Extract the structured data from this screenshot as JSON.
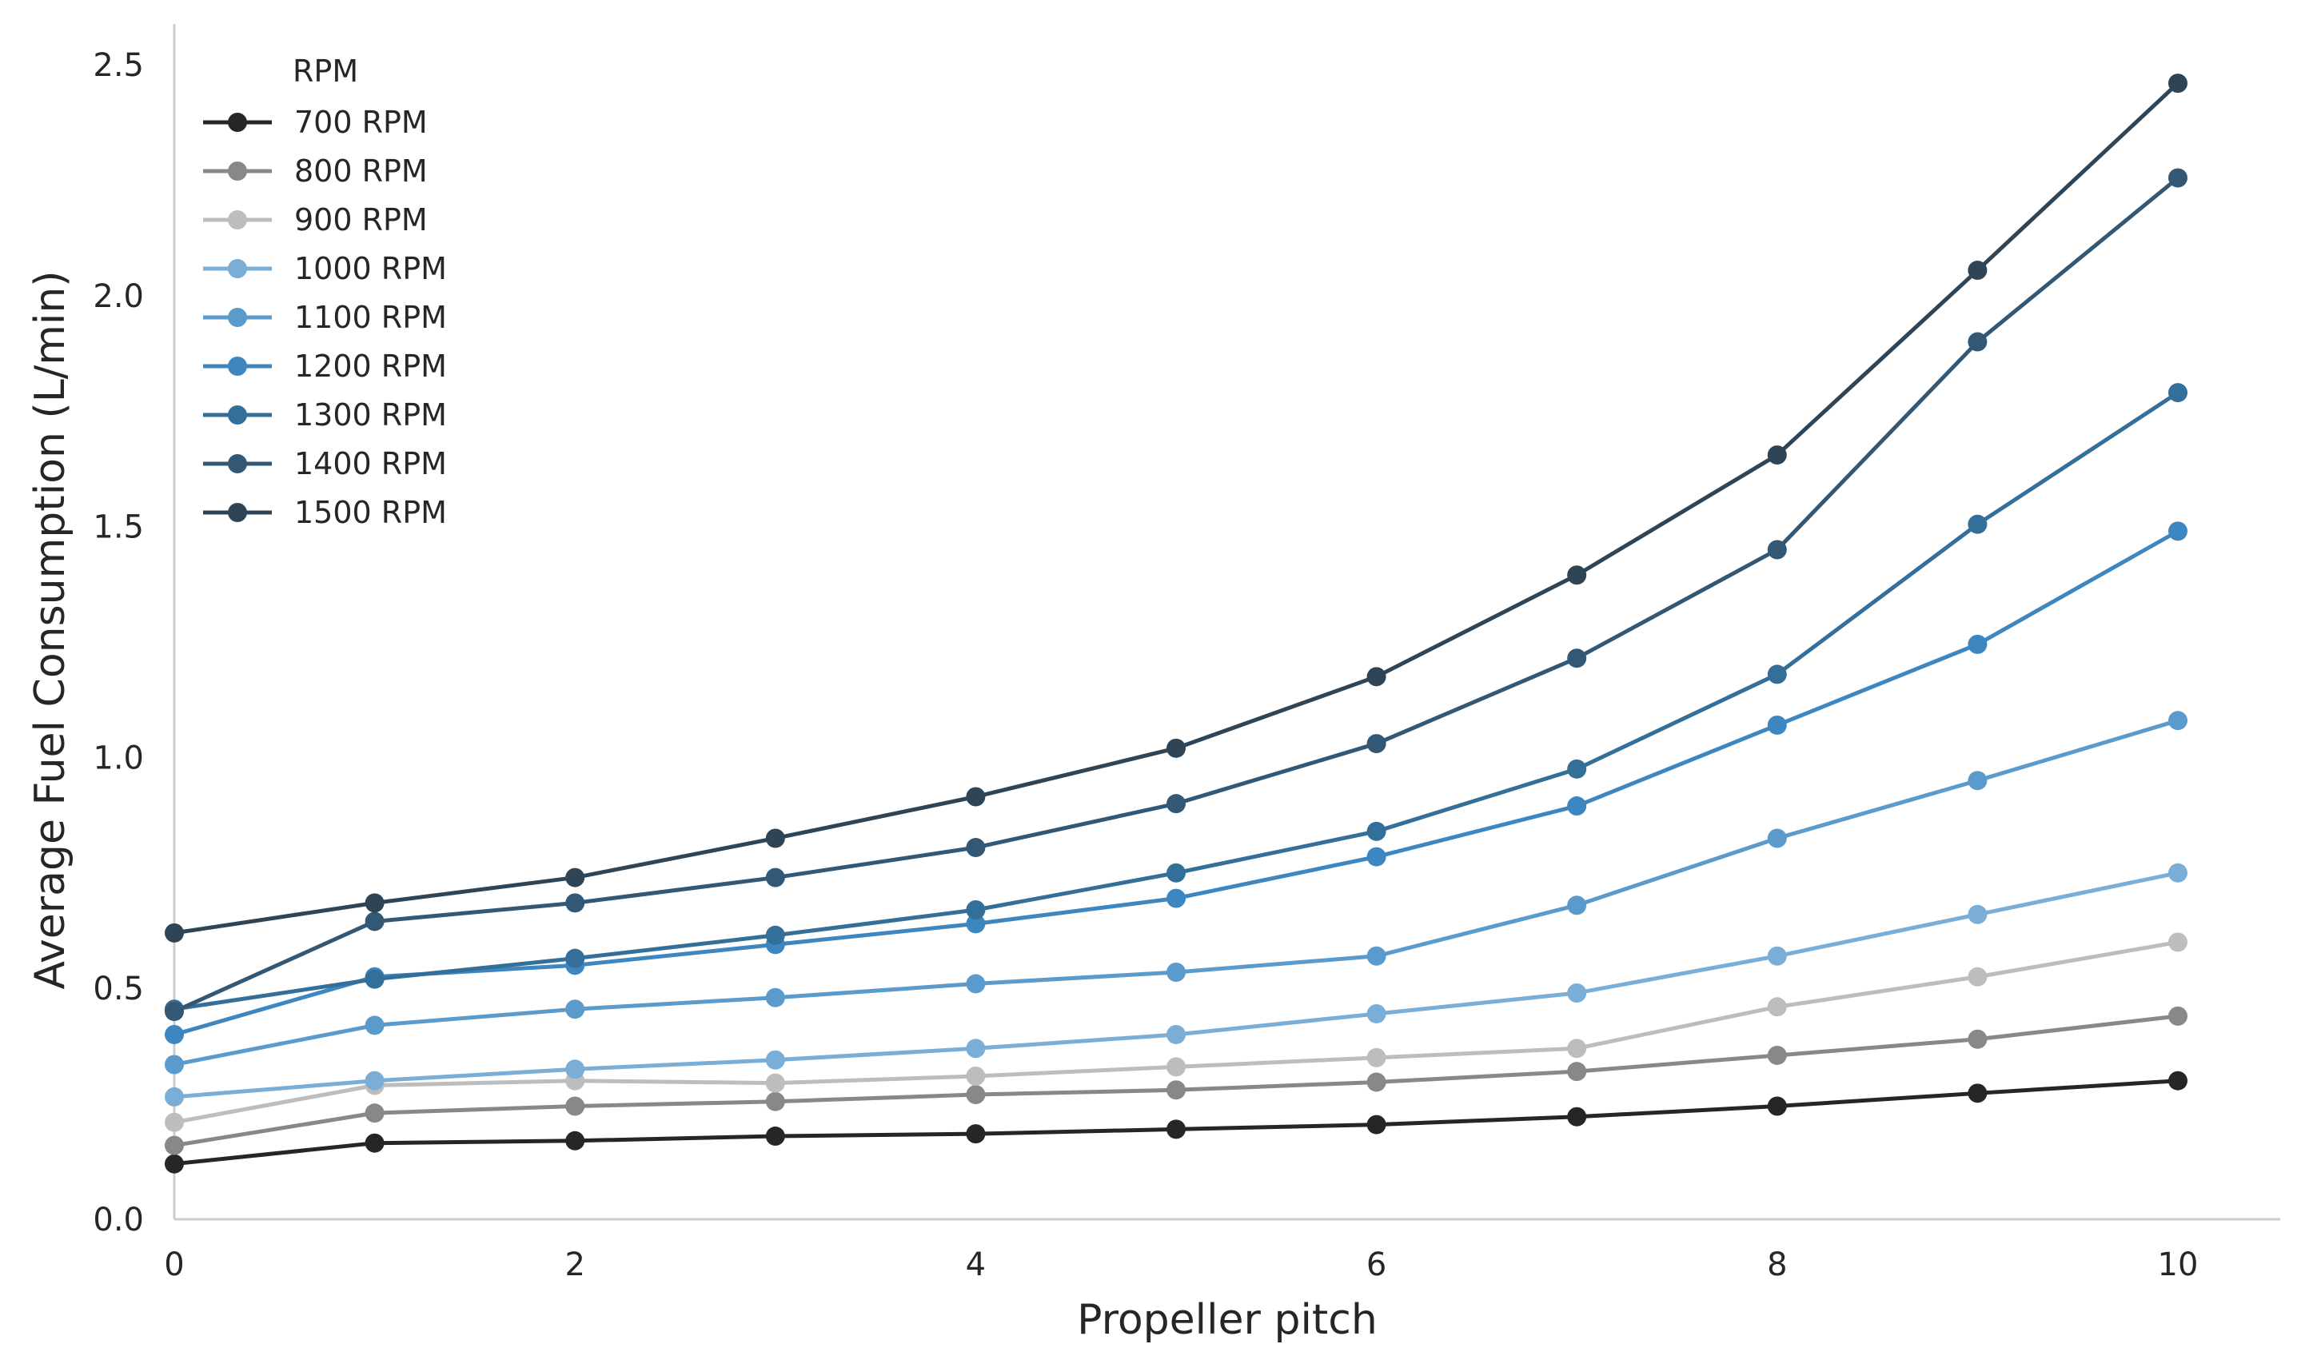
{
  "chart_data": {
    "type": "line",
    "title": "",
    "xlabel": "Propeller pitch",
    "ylabel": "Average Fuel Consumption (L/min)",
    "xlim": [
      0,
      10.5
    ],
    "ylim": [
      0,
      2.6
    ],
    "xticks": [
      "0",
      "2",
      "4",
      "6",
      "8",
      "10"
    ],
    "xtick_values": [
      0,
      2,
      4,
      6,
      8,
      10
    ],
    "yticks": [
      "0.0",
      "0.5",
      "1.0",
      "1.5",
      "2.0",
      "2.5"
    ],
    "ytick_values": [
      0.0,
      0.5,
      1.0,
      1.5,
      2.0,
      2.5
    ],
    "grid": false,
    "legend": {
      "title": "RPM",
      "position": "upper-left"
    },
    "x": [
      0,
      1,
      2,
      3,
      4,
      5,
      6,
      7,
      8,
      9,
      10
    ],
    "series": [
      {
        "name": "700 RPM",
        "color": "#262626",
        "values": [
          0.12,
          0.165,
          0.17,
          0.18,
          0.185,
          0.195,
          0.205,
          0.222,
          0.245,
          0.273,
          0.3
        ]
      },
      {
        "name": "800 RPM",
        "color": "#888888",
        "values": [
          0.16,
          0.23,
          0.245,
          0.255,
          0.27,
          0.28,
          0.297,
          0.32,
          0.355,
          0.39,
          0.44
        ]
      },
      {
        "name": "900 RPM",
        "color": "#bdbdbd",
        "values": [
          0.21,
          0.29,
          0.3,
          0.295,
          0.31,
          0.33,
          0.35,
          0.37,
          0.46,
          0.525,
          0.6
        ]
      },
      {
        "name": "1000 RPM",
        "color": "#7aaed6",
        "values": [
          0.265,
          0.3,
          0.325,
          0.345,
          0.37,
          0.4,
          0.445,
          0.49,
          0.57,
          0.66,
          0.75
        ]
      },
      {
        "name": "1100 RPM",
        "color": "#5b9bcc",
        "values": [
          0.335,
          0.42,
          0.455,
          0.48,
          0.51,
          0.535,
          0.57,
          0.68,
          0.825,
          0.95,
          1.08
        ]
      },
      {
        "name": "1200 RPM",
        "color": "#3d86bf",
        "values": [
          0.4,
          0.525,
          0.55,
          0.595,
          0.64,
          0.695,
          0.785,
          0.895,
          1.07,
          1.245,
          1.49
        ]
      },
      {
        "name": "1300 RPM",
        "color": "#336f99",
        "values": [
          0.455,
          0.52,
          0.565,
          0.615,
          0.67,
          0.75,
          0.84,
          0.975,
          1.18,
          1.505,
          1.79
        ]
      },
      {
        "name": "1400 RPM",
        "color": "#325875",
        "values": [
          0.45,
          0.645,
          0.685,
          0.74,
          0.805,
          0.9,
          1.03,
          1.215,
          1.45,
          1.9,
          2.255
        ]
      },
      {
        "name": "1500 RPM",
        "color": "#2f4556",
        "values": [
          0.62,
          0.685,
          0.74,
          0.825,
          0.915,
          1.02,
          1.175,
          1.395,
          1.655,
          2.055,
          2.46
        ]
      }
    ]
  }
}
